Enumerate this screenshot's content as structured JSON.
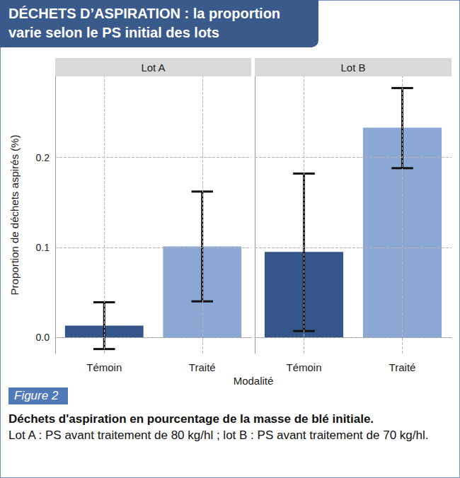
{
  "chart_data": {
    "type": "bar",
    "title": "DÉCHETS D’ASPIRATION : la proportion varie selon le PS initial des lots",
    "ylabel": "Proportion de déchets aspirés (%)",
    "xlabel": "Modalité",
    "ylim": [
      -0.018,
      0.29
    ],
    "yticks": [
      {
        "value": 0,
        "label": "0.0"
      },
      0.1,
      0.2
    ],
    "grid": true,
    "panels": [
      {
        "name": "Lot A",
        "categories": [
          "Témoin",
          "Traité"
        ],
        "values": [
          0.013,
          0.101
        ],
        "error_low": [
          -0.013,
          0.04
        ],
        "error_high": [
          0.039,
          0.162
        ],
        "colors": [
          "#34568b",
          "#8ba7d4"
        ]
      },
      {
        "name": "Lot B",
        "categories": [
          "Témoin",
          "Traité"
        ],
        "values": [
          0.095,
          0.233
        ],
        "error_low": [
          0.007,
          0.188
        ],
        "error_high": [
          0.182,
          0.277
        ],
        "colors": [
          "#34568b",
          "#8ba7d4"
        ]
      }
    ],
    "figure_label": "Figure 2",
    "caption_title": "Déchets d'aspiration en pourcentage de la masse de blé initiale.",
    "caption": "Lot A : PS avant traitement de 80 kg/hl ; lot B : PS avant traitement de 70 kg/hl."
  }
}
